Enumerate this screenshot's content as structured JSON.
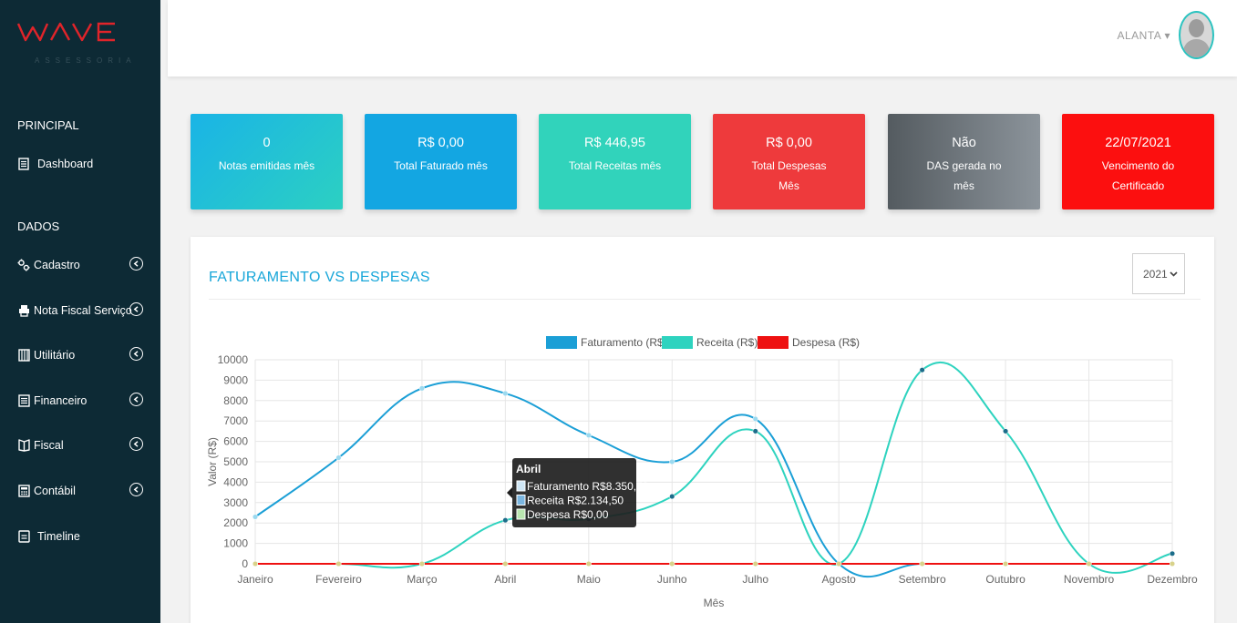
{
  "brand": {
    "logo_text": "WAVE",
    "logo_sub": "ASSESSORIA",
    "colors": {
      "logo": "#e0242a",
      "sidebar": "#0d2a35",
      "accent": "#17a6d9"
    }
  },
  "sidebar": {
    "section_principal": "PRINCIPAL",
    "section_dados": "DADOS",
    "items": [
      {
        "label": "Dashboard",
        "icon": "document-icon"
      },
      {
        "label": "Cadastro",
        "icon": "cogs-icon"
      },
      {
        "label": "Nota Fiscal Serviço",
        "icon": "printer-icon"
      },
      {
        "label": "Utilitário",
        "icon": "book-icon"
      },
      {
        "label": "Financeiro",
        "icon": "list-icon"
      },
      {
        "label": "Fiscal",
        "icon": "book-open-icon"
      },
      {
        "label": "Contábil",
        "icon": "calculator-icon"
      },
      {
        "label": "Timeline",
        "icon": "page-icon"
      }
    ]
  },
  "header": {
    "user": "ALANTA",
    "caret": "▾"
  },
  "cards": [
    {
      "value": "0",
      "label": "Notas emitidas mês"
    },
    {
      "value": "R$ 0,00",
      "label": "Total Faturado mês"
    },
    {
      "value": "R$ 446,95",
      "label": "Total Receitas mês"
    },
    {
      "value": "R$ 0,00",
      "label": "Total Despesas Mês"
    },
    {
      "value": "Não",
      "label": "DAS gerada no mês"
    },
    {
      "value": "22/07/2021",
      "label": "Vencimento do Certificado"
    }
  ],
  "panel": {
    "title": "FATURAMENTO VS DESPESAS",
    "year": "2021"
  },
  "chart_data": {
    "type": "line",
    "categories": [
      "Janeiro",
      "Fevereiro",
      "Março",
      "Abril",
      "Maio",
      "Junho",
      "Julho",
      "Agosto",
      "Setembro",
      "Outubro",
      "Novembro",
      "Dezembro"
    ],
    "series": [
      {
        "name": "Faturamento (R$)",
        "color": "#1b9fd6",
        "values": [
          2300,
          5200,
          8600,
          8350.73,
          6300,
          5000,
          7100,
          0,
          0,
          0,
          0,
          0
        ]
      },
      {
        "name": "Receita (R$)",
        "color": "#2ed3bf",
        "values": [
          0,
          0,
          0,
          2134.5,
          2200,
          3300,
          6500,
          0,
          9500,
          6500,
          0,
          500
        ]
      },
      {
        "name": "Despesa (R$)",
        "color": "#ee1111",
        "values": [
          0,
          0,
          0,
          0,
          0,
          0,
          0,
          0,
          0,
          0,
          0,
          0
        ]
      }
    ],
    "yticks": [
      "0",
      "1000",
      "2000",
      "3000",
      "4000",
      "5000",
      "6000",
      "7000",
      "8000",
      "9000",
      "10000"
    ],
    "ylim": [
      0,
      10000
    ],
    "xlabel": "Mês",
    "ylabel": "Valor (R$)",
    "legend_position": "top",
    "grid": true,
    "tooltip": {
      "title": "Abril",
      "lines": [
        "Faturamento R$8.350,73",
        "Receita R$2.134,50",
        "Despesa R$0,00"
      ]
    }
  }
}
